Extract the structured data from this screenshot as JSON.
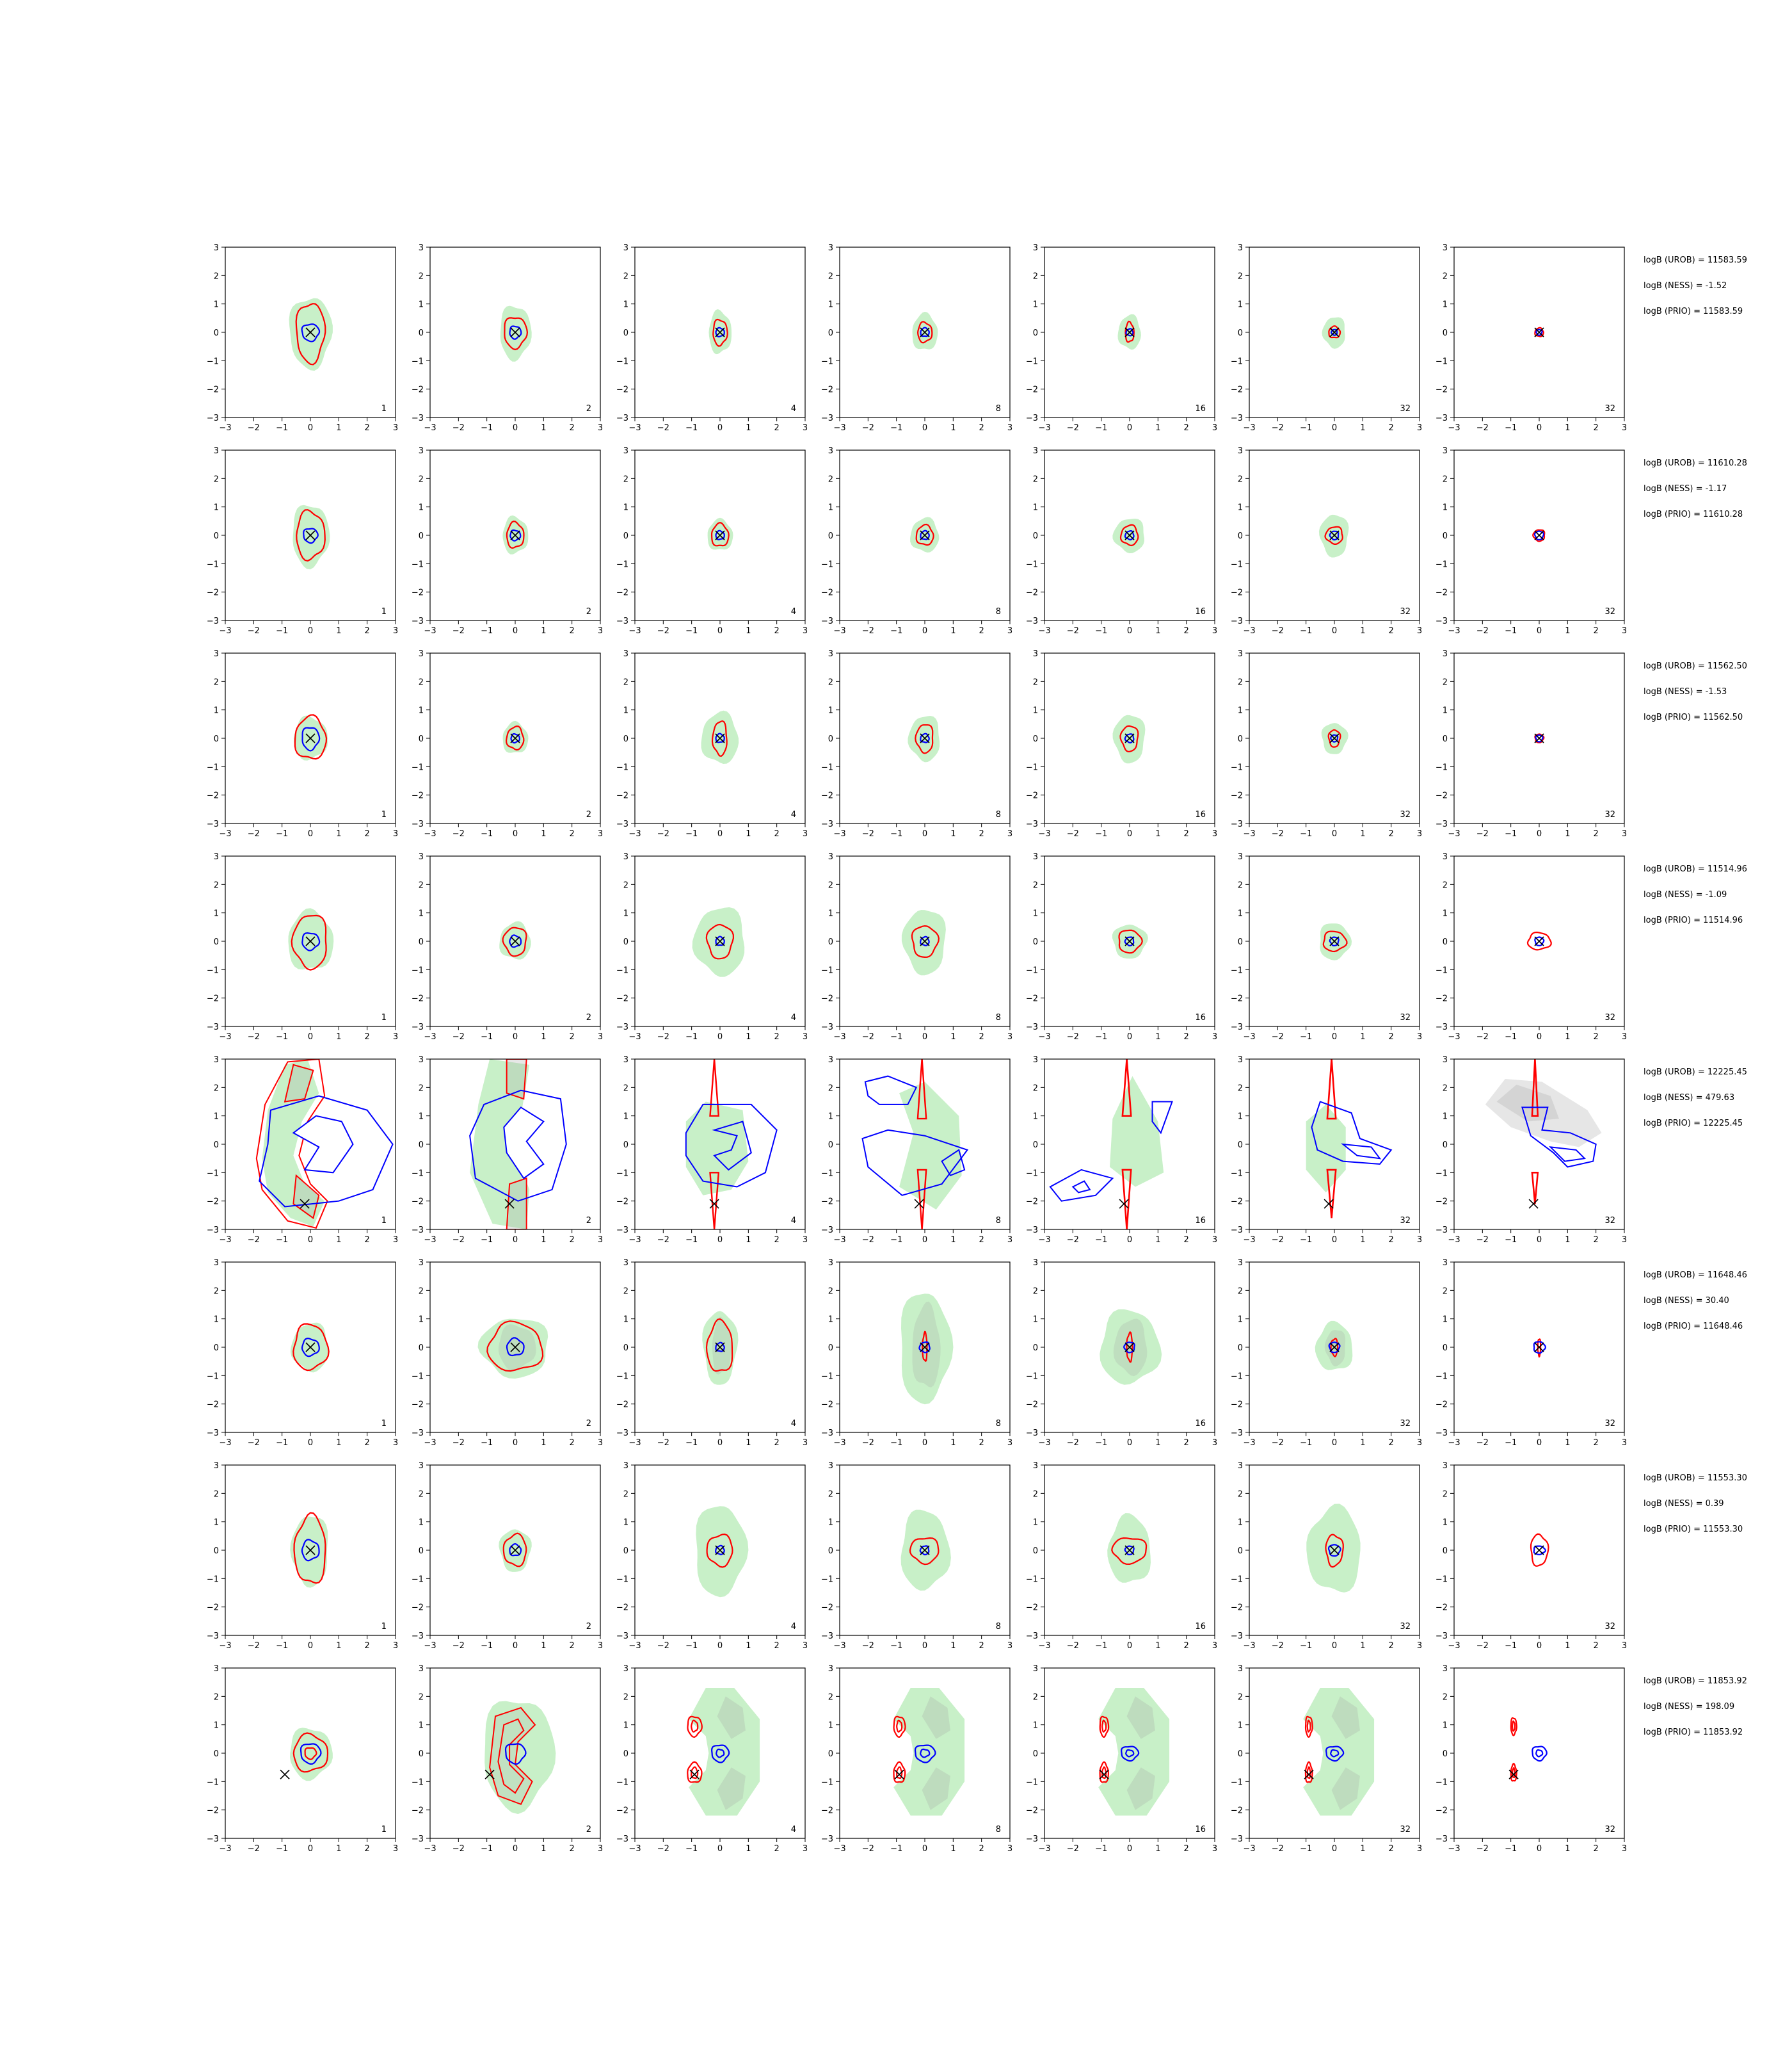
{
  "chart_data": {
    "type": "contour-grid",
    "xlim": [
      -3,
      3
    ],
    "ylim": [
      -3,
      3
    ],
    "ticks": [
      -3,
      -2,
      -1,
      0,
      1,
      2,
      3
    ],
    "columns": [
      "1",
      "2",
      "4",
      "8",
      "16",
      "32",
      "32"
    ],
    "colors": {
      "fill_green": "#c8f0c8",
      "fill_grey": "#a0a0a0",
      "red_contour": "#ff0000",
      "blue_contour": "#0000ff",
      "marker": "#000000"
    },
    "rows": [
      {
        "annotations": [
          "logB (UROB) = 11583.59",
          "logB (NESS) = -1.52",
          "logB (PRIO) = 11583.59"
        ],
        "marker": [
          0.0,
          0.0
        ],
        "panels": [
          {
            "green": [
              0.75,
              1.25
            ],
            "red": [
              0.5,
              1.05
            ],
            "blue": [
              0.3,
              0.3
            ]
          },
          {
            "green": [
              0.55,
              0.95
            ],
            "red": [
              0.4,
              0.55
            ],
            "blue": [
              0.2,
              0.22
            ]
          },
          {
            "green": [
              0.4,
              0.75
            ],
            "red": [
              0.25,
              0.45
            ],
            "blue": [
              0.15,
              0.15
            ]
          },
          {
            "green": [
              0.45,
              0.65
            ],
            "red": [
              0.25,
              0.35
            ],
            "blue": [
              0.15,
              0.15
            ]
          },
          {
            "green": [
              0.4,
              0.6
            ],
            "red": [
              0.15,
              0.35
            ],
            "blue": [
              0.12,
              0.12
            ]
          },
          {
            "green": [
              0.4,
              0.55
            ],
            "red": [
              0.2,
              0.2
            ],
            "blue": [
              0.1,
              0.1
            ]
          },
          {
            "green": [
              0,
              0
            ],
            "red": [
              0.15,
              0.15
            ],
            "blue": [
              0.1,
              0.1
            ]
          }
        ]
      },
      {
        "annotations": [
          "logB (UROB) = 11610.28",
          "logB (NESS) = -1.17",
          "logB (PRIO) = 11610.28"
        ],
        "marker": [
          0.0,
          0.0
        ],
        "panels": [
          {
            "green": [
              0.65,
              1.1
            ],
            "red": [
              0.5,
              0.85
            ],
            "blue": [
              0.25,
              0.25
            ]
          },
          {
            "green": [
              0.45,
              0.65
            ],
            "red": [
              0.3,
              0.45
            ],
            "blue": [
              0.18,
              0.18
            ]
          },
          {
            "green": [
              0.45,
              0.55
            ],
            "red": [
              0.3,
              0.4
            ],
            "blue": [
              0.15,
              0.15
            ]
          },
          {
            "green": [
              0.5,
              0.6
            ],
            "red": [
              0.3,
              0.35
            ],
            "blue": [
              0.15,
              0.15
            ]
          },
          {
            "green": [
              0.55,
              0.6
            ],
            "red": [
              0.3,
              0.35
            ],
            "blue": [
              0.15,
              0.15
            ]
          },
          {
            "green": [
              0.5,
              0.75
            ],
            "red": [
              0.3,
              0.3
            ],
            "blue": [
              0.15,
              0.15
            ]
          },
          {
            "green": [
              0,
              0
            ],
            "red": [
              0.2,
              0.2
            ],
            "blue": [
              0.15,
              0.15
            ]
          }
        ]
      },
      {
        "annotations": [
          "logB (UROB) = 11562.50",
          "logB (NESS) = -1.53",
          "logB (PRIO) = 11562.50"
        ],
        "marker": [
          0.0,
          0.0
        ],
        "panels": [
          {
            "green": [
              0.6,
              0.75
            ],
            "red": [
              0.55,
              0.75
            ],
            "blue": [
              0.3,
              0.4
            ]
          },
          {
            "green": [
              0.45,
              0.55
            ],
            "red": [
              0.3,
              0.4
            ],
            "blue": [
              0.15,
              0.15
            ]
          },
          {
            "green": [
              0.65,
              0.9
            ],
            "red": [
              0.25,
              0.6
            ],
            "blue": [
              0.15,
              0.15
            ]
          },
          {
            "green": [
              0.55,
              0.8
            ],
            "red": [
              0.3,
              0.5
            ],
            "blue": [
              0.15,
              0.15
            ]
          },
          {
            "green": [
              0.55,
              0.85
            ],
            "red": [
              0.3,
              0.45
            ],
            "blue": [
              0.15,
              0.15
            ]
          },
          {
            "green": [
              0.45,
              0.55
            ],
            "red": [
              0.2,
              0.3
            ],
            "blue": [
              0.12,
              0.12
            ]
          },
          {
            "green": [
              0,
              0
            ],
            "red": [
              0.15,
              0.15
            ],
            "blue": [
              0.12,
              0.12
            ]
          }
        ]
      },
      {
        "annotations": [
          "logB (UROB) = 11514.96",
          "logB (NESS) = -1.09",
          "logB (PRIO) = 11514.96"
        ],
        "marker": [
          0.0,
          0.0
        ],
        "panels": [
          {
            "green": [
              0.8,
              1.05
            ],
            "red": [
              0.6,
              0.95
            ],
            "blue": [
              0.3,
              0.3
            ]
          },
          {
            "green": [
              0.55,
              0.65
            ],
            "red": [
              0.4,
              0.5
            ],
            "blue": [
              0.2,
              0.2
            ]
          },
          {
            "green": [
              0.9,
              1.2
            ],
            "red": [
              0.45,
              0.6
            ],
            "blue": [
              0.15,
              0.15
            ]
          },
          {
            "green": [
              0.75,
              1.15
            ],
            "red": [
              0.45,
              0.55
            ],
            "blue": [
              0.15,
              0.15
            ]
          },
          {
            "green": [
              0.6,
              0.6
            ],
            "red": [
              0.4,
              0.4
            ],
            "blue": [
              0.15,
              0.15
            ]
          },
          {
            "green": [
              0.55,
              0.65
            ],
            "red": [
              0.4,
              0.35
            ],
            "blue": [
              0.15,
              0.15
            ]
          },
          {
            "green": [
              0,
              0
            ],
            "red": [
              0.4,
              0.3
            ],
            "blue": [
              0.15,
              0.15
            ]
          }
        ]
      },
      {
        "annotations": [
          "logB (UROB) = 12225.45",
          "logB (NESS) = 479.63",
          "logB (PRIO) = 12225.45"
        ],
        "marker": [
          -0.2,
          -2.1
        ],
        "panels": [
          {
            "green": [
              0,
              0
            ],
            "red": [
              0,
              0
            ],
            "blue": [
              0,
              0
            ]
          },
          {
            "green": [
              0,
              0
            ],
            "red": [
              0,
              0
            ],
            "blue": [
              0,
              0
            ]
          },
          {
            "green": [
              0,
              0
            ],
            "red": [
              0,
              0
            ],
            "blue": [
              0,
              0
            ]
          },
          {
            "green": [
              0,
              0
            ],
            "red": [
              0,
              0
            ],
            "blue": [
              0,
              0
            ]
          },
          {
            "green": [
              0,
              0
            ],
            "red": [
              0,
              0
            ],
            "blue": [
              0,
              0
            ]
          },
          {
            "green": [
              0,
              0
            ],
            "red": [
              0,
              0
            ],
            "blue": [
              0,
              0
            ]
          },
          {
            "green": [
              0,
              0
            ],
            "red": [
              0,
              0
            ],
            "blue": [
              0,
              0
            ]
          }
        ]
      },
      {
        "annotations": [
          "logB (UROB) = 11648.46",
          "logB (NESS) = 30.40",
          "logB (PRIO) = 11648.46"
        ],
        "marker": [
          0.0,
          0.0
        ],
        "panels": [
          {
            "green": [
              0.65,
              0.85
            ],
            "red": [
              0.6,
              0.8
            ],
            "blue": [
              0.3,
              0.3
            ]
          },
          {
            "green": [
              1.2,
              1.05
            ],
            "red": [
              0.95,
              0.85
            ],
            "blue": [
              0.3,
              0.3
            ]
          },
          {
            "green": [
              0.6,
              1.3
            ],
            "red": [
              0.45,
              0.9
            ],
            "blue": [
              0.15,
              0.15
            ]
          },
          {
            "green": [
              0.9,
              1.95
            ],
            "red": [
              0.08,
              0.5
            ],
            "blue": [
              0.18,
              0.18
            ]
          },
          {
            "green": [
              1.05,
              1.3
            ],
            "red": [
              0.1,
              0.5
            ],
            "blue": [
              0.18,
              0.18
            ]
          },
          {
            "green": [
              0.65,
              0.85
            ],
            "red": [
              0.12,
              0.3
            ],
            "blue": [
              0.18,
              0.18
            ]
          },
          {
            "green": [
              0,
              0
            ],
            "red": [
              0.05,
              0.3
            ],
            "blue": [
              0.2,
              0.2
            ]
          }
        ]
      },
      {
        "annotations": [
          "logB (UROB) = 11553.30",
          "logB (NESS) = 0.39",
          "logB (PRIO) = 11553.30"
        ],
        "marker": [
          0.0,
          0.0
        ],
        "panels": [
          {
            "green": [
              0.65,
              1.25
            ],
            "red": [
              0.55,
              1.2
            ],
            "blue": [
              0.3,
              0.35
            ]
          },
          {
            "green": [
              0.55,
              0.75
            ],
            "red": [
              0.4,
              0.55
            ],
            "blue": [
              0.2,
              0.2
            ]
          },
          {
            "green": [
              0.9,
              1.6
            ],
            "red": [
              0.45,
              0.55
            ],
            "blue": [
              0.15,
              0.15
            ]
          },
          {
            "green": [
              0.85,
              1.4
            ],
            "red": [
              0.5,
              0.45
            ],
            "blue": [
              0.15,
              0.15
            ]
          },
          {
            "green": [
              0.75,
              1.2
            ],
            "red": [
              0.6,
              0.45
            ],
            "blue": [
              0.15,
              0.15
            ]
          },
          {
            "green": [
              0.95,
              1.5
            ],
            "red": [
              0.3,
              0.55
            ],
            "blue": [
              0.2,
              0.2
            ]
          },
          {
            "green": [
              0,
              0
            ],
            "red": [
              0.3,
              0.55
            ],
            "blue": [
              0.2,
              0.15
            ]
          }
        ]
      },
      {
        "annotations": [
          "logB (UROB) = 11853.92",
          "logB (NESS) = 198.09",
          "logB (PRIO) = 11853.92"
        ],
        "marker": [
          -0.9,
          -0.75
        ],
        "panels": [
          {
            "green": [
              0.75,
              0.9
            ],
            "red": [
              0.6,
              0.65
            ],
            "blue": [
              0.35,
              0.35
            ]
          },
          {
            "green": [
              1.25,
              1.95
            ],
            "red": [
              1.0,
              1.8
            ],
            "blue": [
              0.35,
              0.35
            ]
          },
          {
            "green": [
              1.45,
              2.35
            ],
            "red": [
              0.25,
              0.35
            ],
            "blue": [
              0.3,
              0.3
            ]
          },
          {
            "green": [
              1.45,
              2.55
            ],
            "red": [
              0.2,
              0.35
            ],
            "blue": [
              0.35,
              0.3
            ]
          },
          {
            "green": [
              1.45,
              2.3
            ],
            "red": [
              0.15,
              0.35
            ],
            "blue": [
              0.3,
              0.25
            ]
          },
          {
            "green": [
              1.55,
              2.25
            ],
            "red": [
              0.12,
              0.35
            ],
            "blue": [
              0.3,
              0.25
            ]
          },
          {
            "green": [
              0,
              0
            ],
            "red": [
              0.1,
              0.3
            ],
            "blue": [
              0.25,
              0.25
            ]
          }
        ]
      }
    ]
  }
}
